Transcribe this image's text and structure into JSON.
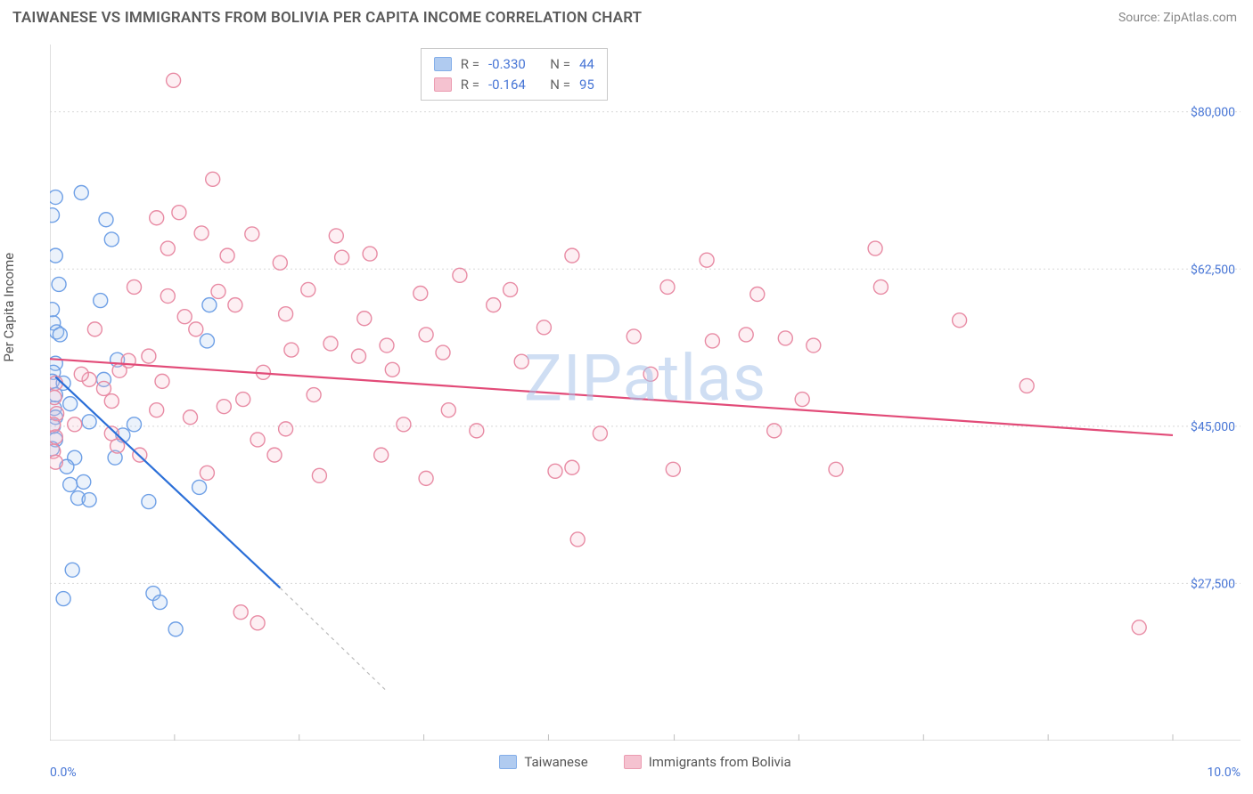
{
  "title": "TAIWANESE VS IMMIGRANTS FROM BOLIVIA PER CAPITA INCOME CORRELATION CHART",
  "source": "Source: ZipAtlas.com",
  "ylabel": "Per Capita Income",
  "watermark": "ZIPatlas",
  "chart": {
    "type": "scatter",
    "xlim": [
      0,
      10
    ],
    "ylim": [
      10000,
      87500
    ],
    "x_ticks": [
      0,
      1.11,
      2.22,
      3.33,
      4.44,
      5.56,
      6.67,
      7.78,
      8.89,
      10
    ],
    "x_tick_labels_visible": {
      "0": "0.0%",
      "10": "10.0%"
    },
    "y_ticks": [
      27500,
      45000,
      62500,
      80000
    ],
    "y_tick_labels": [
      "$27,500",
      "$45,000",
      "$62,500",
      "$80,000"
    ],
    "grid_color": "#d8d8d8",
    "border_color": "#bfbfbf",
    "background": "#ffffff",
    "marker_radius": 8,
    "marker_fill_opacity": 0.22,
    "marker_stroke_width": 1.4,
    "series": [
      {
        "name": "Taiwanese",
        "color_stroke": "#6fa0e6",
        "color_fill": "#a3c3ee",
        "trend_color": "#2b6fd8",
        "R": "-0.330",
        "N": "44",
        "trend": {
          "x1": 0.05,
          "y1": 50500,
          "x2": 2.05,
          "y2": 27000
        },
        "trend_dash": {
          "x1": 2.05,
          "y1": 27000,
          "x2": 3.0,
          "y2": 15500
        },
        "points": [
          [
            0.05,
            70500
          ],
          [
            0.02,
            68500
          ],
          [
            0.05,
            64000
          ],
          [
            0.02,
            58000
          ],
          [
            0.03,
            56500
          ],
          [
            0.06,
            55500
          ],
          [
            0.05,
            52000
          ],
          [
            0.03,
            51000
          ],
          [
            0.02,
            50000
          ],
          [
            0.05,
            48500
          ],
          [
            0.04,
            47000
          ],
          [
            0.05,
            46000
          ],
          [
            0.03,
            45000
          ],
          [
            0.05,
            43500
          ],
          [
            0.02,
            42500
          ],
          [
            0.28,
            71000
          ],
          [
            0.45,
            59000
          ],
          [
            0.5,
            68000
          ],
          [
            0.55,
            65800
          ],
          [
            0.35,
            45500
          ],
          [
            0.22,
            41500
          ],
          [
            0.15,
            40500
          ],
          [
            0.18,
            38500
          ],
          [
            0.25,
            37000
          ],
          [
            0.3,
            38800
          ],
          [
            0.35,
            36800
          ],
          [
            0.2,
            29000
          ],
          [
            0.12,
            25800
          ],
          [
            0.65,
            44000
          ],
          [
            0.75,
            45200
          ],
          [
            0.88,
            36600
          ],
          [
            0.92,
            26400
          ],
          [
            0.98,
            25400
          ],
          [
            1.12,
            22400
          ],
          [
            1.4,
            54500
          ],
          [
            1.33,
            38200
          ],
          [
            1.42,
            58500
          ],
          [
            0.48,
            50200
          ],
          [
            0.6,
            52400
          ],
          [
            0.08,
            60800
          ],
          [
            0.09,
            55200
          ],
          [
            0.12,
            49800
          ],
          [
            0.18,
            47500
          ],
          [
            0.58,
            41500
          ]
        ]
      },
      {
        "name": "Immigrants from Bolivia",
        "color_stroke": "#e88ba4",
        "color_fill": "#f4b8c8",
        "trend_color": "#e24b78",
        "R": "-0.164",
        "N": "95",
        "trend": {
          "x1": 0.0,
          "y1": 52500,
          "x2": 10.0,
          "y2": 44000
        },
        "points": [
          [
            0.05,
            49800
          ],
          [
            0.04,
            48200
          ],
          [
            0.06,
            46400
          ],
          [
            0.03,
            45200
          ],
          [
            0.05,
            43800
          ],
          [
            0.03,
            42200
          ],
          [
            0.05,
            41000
          ],
          [
            0.22,
            45200
          ],
          [
            0.35,
            50200
          ],
          [
            0.48,
            49200
          ],
          [
            0.55,
            47800
          ],
          [
            0.62,
            51200
          ],
          [
            0.7,
            52300
          ],
          [
            0.88,
            52800
          ],
          [
            0.95,
            68200
          ],
          [
            1.05,
            64800
          ],
          [
            0.75,
            60500
          ],
          [
            1.1,
            83500
          ],
          [
            1.05,
            59500
          ],
          [
            1.2,
            57200
          ],
          [
            1.45,
            72500
          ],
          [
            1.35,
            66500
          ],
          [
            1.5,
            60000
          ],
          [
            1.3,
            55800
          ],
          [
            1.58,
            64000
          ],
          [
            1.65,
            58500
          ],
          [
            1.8,
            66400
          ],
          [
            1.72,
            48000
          ],
          [
            1.9,
            51000
          ],
          [
            2.05,
            63200
          ],
          [
            2.1,
            57500
          ],
          [
            2.15,
            53500
          ],
          [
            2.3,
            60200
          ],
          [
            2.5,
            54200
          ],
          [
            2.35,
            48500
          ],
          [
            2.6,
            63800
          ],
          [
            2.85,
            64200
          ],
          [
            2.8,
            57000
          ],
          [
            2.75,
            52800
          ],
          [
            3.0,
            54000
          ],
          [
            3.05,
            51300
          ],
          [
            3.15,
            45200
          ],
          [
            3.3,
            59800
          ],
          [
            3.35,
            55200
          ],
          [
            3.5,
            53200
          ],
          [
            3.55,
            46800
          ],
          [
            3.65,
            61800
          ],
          [
            3.8,
            44500
          ],
          [
            3.95,
            58500
          ],
          [
            4.1,
            60200
          ],
          [
            4.2,
            52200
          ],
          [
            4.4,
            56000
          ],
          [
            4.5,
            40000
          ],
          [
            4.65,
            64000
          ],
          [
            4.9,
            44200
          ],
          [
            5.2,
            55000
          ],
          [
            5.35,
            50800
          ],
          [
            5.5,
            60500
          ],
          [
            5.85,
            63500
          ],
          [
            5.9,
            54500
          ],
          [
            6.2,
            55200
          ],
          [
            6.3,
            59700
          ],
          [
            6.55,
            54800
          ],
          [
            6.7,
            48000
          ],
          [
            6.8,
            54000
          ],
          [
            2.4,
            39500
          ],
          [
            2.0,
            41800
          ],
          [
            1.85,
            43500
          ],
          [
            1.4,
            39800
          ],
          [
            1.7,
            24300
          ],
          [
            1.85,
            23100
          ],
          [
            0.4,
            55800
          ],
          [
            0.55,
            44200
          ],
          [
            0.6,
            42800
          ],
          [
            0.8,
            41800
          ],
          [
            1.15,
            68800
          ],
          [
            1.55,
            47200
          ],
          [
            2.95,
            41800
          ],
          [
            3.35,
            39200
          ],
          [
            4.7,
            32400
          ],
          [
            4.65,
            40400
          ],
          [
            2.1,
            44700
          ],
          [
            0.95,
            46800
          ],
          [
            5.55,
            40200
          ],
          [
            1.0,
            50000
          ],
          [
            1.25,
            46000
          ],
          [
            2.55,
            66200
          ],
          [
            0.28,
            50800
          ],
          [
            9.7,
            22600
          ],
          [
            8.7,
            49500
          ],
          [
            8.1,
            56800
          ],
          [
            7.35,
            64800
          ],
          [
            7.4,
            60500
          ],
          [
            7.0,
            40200
          ],
          [
            6.45,
            44500
          ]
        ]
      }
    ]
  },
  "colors": {
    "title": "#5a5a5a",
    "tick": "#4876d6"
  }
}
